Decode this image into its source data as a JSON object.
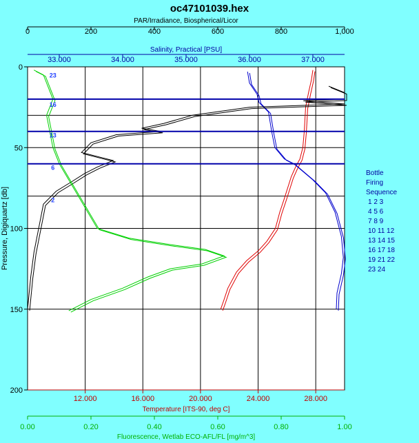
{
  "chart_data": {
    "type": "line",
    "title": "oc47101039.hex",
    "y_axis": {
      "label": "Pressure, Digiquartz [db]",
      "range": [
        0,
        200
      ],
      "ticks": [
        0,
        50,
        100,
        150,
        200
      ]
    },
    "axes": {
      "par": {
        "label": "PAR/Irradiance, Biospherical/Licor",
        "range": [
          0,
          1000
        ],
        "ticks": [
          "0",
          "200",
          "400",
          "600",
          "800",
          "1,000"
        ],
        "color": "#000000",
        "position": "top"
      },
      "salinity": {
        "label": "Salinity, Practical [PSU]",
        "range": [
          32.5,
          37.5
        ],
        "ticks": [
          "33.000",
          "34.000",
          "35.000",
          "36.000",
          "37.000"
        ],
        "tick_values": [
          33,
          34,
          35,
          36,
          37
        ],
        "color": "#0000a0",
        "position": "top"
      },
      "temperature": {
        "label": "Temperature [ITS-90, deg C]",
        "range": [
          8,
          30
        ],
        "ticks": [
          "12.000",
          "16.000",
          "20.000",
          "24.000",
          "28.000"
        ],
        "tick_values": [
          12,
          16,
          20,
          24,
          28
        ],
        "color": "#c00000",
        "position": "bottom"
      },
      "fluorescence": {
        "label": "Fluorescence, Wetlab ECO-AFL/FL [mg/m^3]",
        "range": [
          0,
          1
        ],
        "ticks": [
          "0.00",
          "0.20",
          "0.40",
          "0.60",
          "0.80",
          "1.00"
        ],
        "color": "#00b000",
        "position": "bottom"
      }
    },
    "series": [
      {
        "key": "temperature",
        "color": "#e00000",
        "points": [
          [
            27.8,
            2
          ],
          [
            27.7,
            8
          ],
          [
            27.5,
            16
          ],
          [
            27.3,
            25
          ],
          [
            27.2,
            40
          ],
          [
            27.1,
            50
          ],
          [
            26.9,
            57
          ],
          [
            26.6,
            62
          ],
          [
            26.3,
            68
          ],
          [
            25.8,
            82
          ],
          [
            25.5,
            90
          ],
          [
            25.2,
            100
          ],
          [
            24.6,
            108
          ],
          [
            24.0,
            114
          ],
          [
            23.2,
            120
          ],
          [
            22.5,
            127
          ],
          [
            21.9,
            137
          ],
          [
            21.6,
            145
          ],
          [
            21.4,
            150
          ]
        ]
      },
      {
        "key": "salinity",
        "color": "#0000cc",
        "points": [
          [
            35.97,
            3
          ],
          [
            36.0,
            10
          ],
          [
            36.12,
            17
          ],
          [
            36.15,
            22
          ],
          [
            36.3,
            28
          ],
          [
            36.35,
            40
          ],
          [
            36.4,
            50
          ],
          [
            36.55,
            57
          ],
          [
            36.7,
            60
          ],
          [
            37.0,
            70
          ],
          [
            37.2,
            78
          ],
          [
            37.35,
            90
          ],
          [
            37.45,
            105
          ],
          [
            37.48,
            118
          ],
          [
            37.45,
            128
          ],
          [
            37.38,
            140
          ],
          [
            37.37,
            150
          ]
        ]
      },
      {
        "key": "par",
        "color": "#000000",
        "points": [
          [
            950,
            12
          ],
          [
            1000,
            16
          ],
          [
            1000,
            20
          ],
          [
            870,
            21
          ],
          [
            1000,
            23
          ],
          [
            700,
            25
          ],
          [
            520,
            30
          ],
          [
            430,
            35
          ],
          [
            360,
            38
          ],
          [
            420,
            40
          ],
          [
            280,
            42
          ],
          [
            200,
            47
          ],
          [
            170,
            53
          ],
          [
            230,
            56
          ],
          [
            270,
            58
          ],
          [
            220,
            62
          ],
          [
            180,
            66
          ],
          [
            140,
            71
          ],
          [
            90,
            77
          ],
          [
            50,
            85
          ],
          [
            40,
            95
          ],
          [
            30,
            105
          ],
          [
            20,
            115
          ],
          [
            10,
            130
          ],
          [
            0,
            150
          ]
        ]
      },
      {
        "key": "fluorescence",
        "color": "#00d000",
        "points": [
          [
            0.02,
            2
          ],
          [
            0.05,
            5
          ],
          [
            0.06,
            10
          ],
          [
            0.08,
            20
          ],
          [
            0.06,
            30
          ],
          [
            0.07,
            40
          ],
          [
            0.08,
            50
          ],
          [
            0.1,
            60
          ],
          [
            0.13,
            70
          ],
          [
            0.16,
            80
          ],
          [
            0.19,
            90
          ],
          [
            0.22,
            100
          ],
          [
            0.32,
            106
          ],
          [
            0.45,
            110
          ],
          [
            0.56,
            113
          ],
          [
            0.62,
            117
          ],
          [
            0.55,
            122
          ],
          [
            0.45,
            125
          ],
          [
            0.38,
            130
          ],
          [
            0.3,
            137
          ],
          [
            0.2,
            144
          ],
          [
            0.16,
            148
          ],
          [
            0.13,
            151
          ]
        ]
      }
    ],
    "bottle_lines": [
      20,
      40,
      60
    ],
    "bottle_marks": [
      {
        "label": "23",
        "fl": 0.08,
        "p": 5
      },
      {
        "label": "16",
        "fl": 0.08,
        "p": 23
      },
      {
        "label": "13",
        "fl": 0.08,
        "p": 42
      },
      {
        "label": "6",
        "fl": 0.08,
        "p": 62
      },
      {
        "label": "2",
        "fl": 0.08,
        "p": 82
      }
    ],
    "grid": true,
    "legend": {
      "title": [
        "Bottle",
        "Firing",
        "Sequence"
      ],
      "rows": [
        "1  2  3",
        "4  5  6",
        "7  8  9",
        "10 11 12",
        "13 14 15",
        "16 17 18",
        "19 21 22",
        "23 24"
      ]
    }
  }
}
